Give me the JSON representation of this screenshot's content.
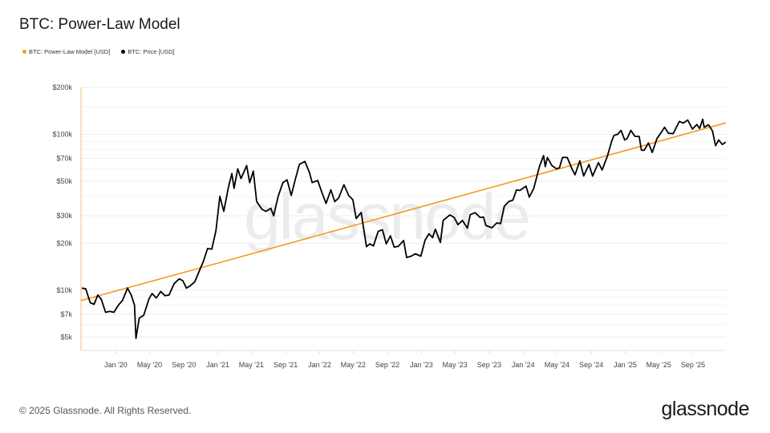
{
  "header": {
    "title": "BTC: Power-Law Model"
  },
  "footer": {
    "copyright": "© 2025 Glassnode. All Rights Reserved.",
    "logo": "glassnode"
  },
  "watermark": "glassnode",
  "colors": {
    "model": "#f39a1e",
    "price": "#000000",
    "grid": "#eeeeee",
    "watermark": "#ececec"
  },
  "chart_data": {
    "type": "line",
    "title": "BTC: Power-Law Model",
    "xlabel": "",
    "ylabel": "",
    "y_scale": "log",
    "ylim": [
      4100,
      200000
    ],
    "xlim": [
      "2019-08-29",
      "2025-12-28"
    ],
    "grid": true,
    "legend_position": "top-left",
    "y_ticks": [
      {
        "value": 200000,
        "label": "$200k"
      },
      {
        "value": 100000,
        "label": "$100k"
      },
      {
        "value": 70000,
        "label": "$70k"
      },
      {
        "value": 50000,
        "label": "$50k"
      },
      {
        "value": 30000,
        "label": "$30k"
      },
      {
        "value": 20000,
        "label": "$20k"
      },
      {
        "value": 10000,
        "label": "$10k"
      },
      {
        "value": 7000,
        "label": "$7k"
      },
      {
        "value": 5000,
        "label": "$5k"
      }
    ],
    "x_ticks": [
      {
        "date": "2020-01-01",
        "label": "Jan '20"
      },
      {
        "date": "2020-05-01",
        "label": "May '20"
      },
      {
        "date": "2020-09-01",
        "label": "Sep '20"
      },
      {
        "date": "2021-01-01",
        "label": "Jan '21"
      },
      {
        "date": "2021-05-01",
        "label": "May '21"
      },
      {
        "date": "2021-09-01",
        "label": "Sep '21"
      },
      {
        "date": "2022-01-01",
        "label": "Jan '22"
      },
      {
        "date": "2022-05-01",
        "label": "May '22"
      },
      {
        "date": "2022-09-01",
        "label": "Sep '22"
      },
      {
        "date": "2023-01-01",
        "label": "Jan '23"
      },
      {
        "date": "2023-05-01",
        "label": "May '23"
      },
      {
        "date": "2023-09-01",
        "label": "Sep '23"
      },
      {
        "date": "2024-01-01",
        "label": "Jan '24"
      },
      {
        "date": "2024-05-01",
        "label": "May '24"
      },
      {
        "date": "2024-09-01",
        "label": "Sep '24"
      },
      {
        "date": "2025-01-01",
        "label": "Jan '25"
      },
      {
        "date": "2025-05-01",
        "label": "May '25"
      },
      {
        "date": "2025-09-01",
        "label": "Sep '25"
      }
    ],
    "series": [
      {
        "name": "BTC: Power-Law Model [USD]",
        "color": "#f39a1e",
        "points": [
          [
            "2019-08-29",
            8570
          ],
          [
            "2020-01-01",
            9870
          ],
          [
            "2021-01-01",
            14900
          ],
          [
            "2022-01-01",
            22600
          ],
          [
            "2023-01-01",
            34300
          ],
          [
            "2024-01-01",
            51900
          ],
          [
            "2025-01-01",
            78600
          ],
          [
            "2025-12-28",
            118500
          ]
        ]
      },
      {
        "name": "BTC: Price [USD]",
        "color": "#000000",
        "points": [
          [
            "2019-09-01",
            10300
          ],
          [
            "2019-09-15",
            10200
          ],
          [
            "2019-10-01",
            8300
          ],
          [
            "2019-10-15",
            8100
          ],
          [
            "2019-10-28",
            9300
          ],
          [
            "2019-11-10",
            8700
          ],
          [
            "2019-11-25",
            7200
          ],
          [
            "2019-12-10",
            7300
          ],
          [
            "2019-12-25",
            7200
          ],
          [
            "2020-01-10",
            8000
          ],
          [
            "2020-01-25",
            8600
          ],
          [
            "2020-02-12",
            10300
          ],
          [
            "2020-02-25",
            9300
          ],
          [
            "2020-03-08",
            8000
          ],
          [
            "2020-03-13",
            4900
          ],
          [
            "2020-03-25",
            6600
          ],
          [
            "2020-04-10",
            6900
          ],
          [
            "2020-04-29",
            8800
          ],
          [
            "2020-05-10",
            9500
          ],
          [
            "2020-05-25",
            8900
          ],
          [
            "2020-06-10",
            9800
          ],
          [
            "2020-06-25",
            9200
          ],
          [
            "2020-07-10",
            9300
          ],
          [
            "2020-07-28",
            11000
          ],
          [
            "2020-08-15",
            11800
          ],
          [
            "2020-08-28",
            11500
          ],
          [
            "2020-09-10",
            10300
          ],
          [
            "2020-09-25",
            10700
          ],
          [
            "2020-10-10",
            11300
          ],
          [
            "2020-10-25",
            13100
          ],
          [
            "2020-11-10",
            15300
          ],
          [
            "2020-11-25",
            18500
          ],
          [
            "2020-12-10",
            18300
          ],
          [
            "2020-12-25",
            24000
          ],
          [
            "2021-01-08",
            40000
          ],
          [
            "2021-01-22",
            32000
          ],
          [
            "2021-02-08",
            46000
          ],
          [
            "2021-02-20",
            56000
          ],
          [
            "2021-02-28",
            45000
          ],
          [
            "2021-03-13",
            60000
          ],
          [
            "2021-03-25",
            52000
          ],
          [
            "2021-04-14",
            63000
          ],
          [
            "2021-04-25",
            49000
          ],
          [
            "2021-05-08",
            58000
          ],
          [
            "2021-05-20",
            37000
          ],
          [
            "2021-06-08",
            33000
          ],
          [
            "2021-06-22",
            32000
          ],
          [
            "2021-07-10",
            33500
          ],
          [
            "2021-07-20",
            30000
          ],
          [
            "2021-08-05",
            40000
          ],
          [
            "2021-08-22",
            49000
          ],
          [
            "2021-09-06",
            51000
          ],
          [
            "2021-09-21",
            40500
          ],
          [
            "2021-10-05",
            51000
          ],
          [
            "2021-10-20",
            64000
          ],
          [
            "2021-11-09",
            67000
          ],
          [
            "2021-11-25",
            57000
          ],
          [
            "2021-12-05",
            49000
          ],
          [
            "2021-12-25",
            50500
          ],
          [
            "2022-01-10",
            41800
          ],
          [
            "2022-01-24",
            36000
          ],
          [
            "2022-02-10",
            44000
          ],
          [
            "2022-02-24",
            37000
          ],
          [
            "2022-03-10",
            39000
          ],
          [
            "2022-03-29",
            47500
          ],
          [
            "2022-04-15",
            40500
          ],
          [
            "2022-04-30",
            38000
          ],
          [
            "2022-05-12",
            28800
          ],
          [
            "2022-05-30",
            31500
          ],
          [
            "2022-06-18",
            19000
          ],
          [
            "2022-06-30",
            19800
          ],
          [
            "2022-07-13",
            19200
          ],
          [
            "2022-07-30",
            23800
          ],
          [
            "2022-08-14",
            24400
          ],
          [
            "2022-08-28",
            19800
          ],
          [
            "2022-09-12",
            22300
          ],
          [
            "2022-09-25",
            18900
          ],
          [
            "2022-10-10",
            19100
          ],
          [
            "2022-10-29",
            20800
          ],
          [
            "2022-11-09",
            16200
          ],
          [
            "2022-11-25",
            16500
          ],
          [
            "2022-12-10",
            17100
          ],
          [
            "2022-12-30",
            16500
          ],
          [
            "2023-01-14",
            20900
          ],
          [
            "2023-01-28",
            23000
          ],
          [
            "2023-02-10",
            21700
          ],
          [
            "2023-02-20",
            24600
          ],
          [
            "2023-03-10",
            20200
          ],
          [
            "2023-03-20",
            28000
          ],
          [
            "2023-04-13",
            30400
          ],
          [
            "2023-04-28",
            29300
          ],
          [
            "2023-05-12",
            26300
          ],
          [
            "2023-05-28",
            28000
          ],
          [
            "2023-06-15",
            25000
          ],
          [
            "2023-06-25",
            30500
          ],
          [
            "2023-07-13",
            31400
          ],
          [
            "2023-07-30",
            29300
          ],
          [
            "2023-08-12",
            29400
          ],
          [
            "2023-08-20",
            26000
          ],
          [
            "2023-09-11",
            25100
          ],
          [
            "2023-09-28",
            27000
          ],
          [
            "2023-10-12",
            26700
          ],
          [
            "2023-10-25",
            34500
          ],
          [
            "2023-11-10",
            37000
          ],
          [
            "2023-11-25",
            37800
          ],
          [
            "2023-12-08",
            44000
          ],
          [
            "2023-12-20",
            43600
          ],
          [
            "2024-01-11",
            46500
          ],
          [
            "2024-01-23",
            39500
          ],
          [
            "2024-02-08",
            45000
          ],
          [
            "2024-02-28",
            62000
          ],
          [
            "2024-03-14",
            73000
          ],
          [
            "2024-03-20",
            62000
          ],
          [
            "2024-03-28",
            71000
          ],
          [
            "2024-04-13",
            63000
          ],
          [
            "2024-04-30",
            60000
          ],
          [
            "2024-05-10",
            61000
          ],
          [
            "2024-05-21",
            71000
          ],
          [
            "2024-06-07",
            71000
          ],
          [
            "2024-06-24",
            60000
          ],
          [
            "2024-07-05",
            55000
          ],
          [
            "2024-07-22",
            67500
          ],
          [
            "2024-08-05",
            54000
          ],
          [
            "2024-08-24",
            64000
          ],
          [
            "2024-09-06",
            53900
          ],
          [
            "2024-09-27",
            65800
          ],
          [
            "2024-10-10",
            59000
          ],
          [
            "2024-10-29",
            72500
          ],
          [
            "2024-11-13",
            90000
          ],
          [
            "2024-11-22",
            98500
          ],
          [
            "2024-12-05",
            100000
          ],
          [
            "2024-12-17",
            106000
          ],
          [
            "2024-12-30",
            92000
          ],
          [
            "2025-01-08",
            94000
          ],
          [
            "2025-01-21",
            106000
          ],
          [
            "2025-02-05",
            97000
          ],
          [
            "2025-02-20",
            97000
          ],
          [
            "2025-02-28",
            79000
          ],
          [
            "2025-03-10",
            79000
          ],
          [
            "2025-03-25",
            88000
          ],
          [
            "2025-04-08",
            76500
          ],
          [
            "2025-04-25",
            94000
          ],
          [
            "2025-05-12",
            104000
          ],
          [
            "2025-05-22",
            111000
          ],
          [
            "2025-06-05",
            101500
          ],
          [
            "2025-06-22",
            101000
          ],
          [
            "2025-07-14",
            121000
          ],
          [
            "2025-07-28",
            118000
          ],
          [
            "2025-08-13",
            123500
          ],
          [
            "2025-08-30",
            108000
          ],
          [
            "2025-09-15",
            115500
          ],
          [
            "2025-09-25",
            109000
          ],
          [
            "2025-10-06",
            125000
          ],
          [
            "2025-10-11",
            111000
          ],
          [
            "2025-10-27",
            115000
          ],
          [
            "2025-11-10",
            105000
          ],
          [
            "2025-11-21",
            84500
          ],
          [
            "2025-12-02",
            92000
          ],
          [
            "2025-12-15",
            86000
          ],
          [
            "2025-12-27",
            89000
          ]
        ]
      }
    ]
  }
}
